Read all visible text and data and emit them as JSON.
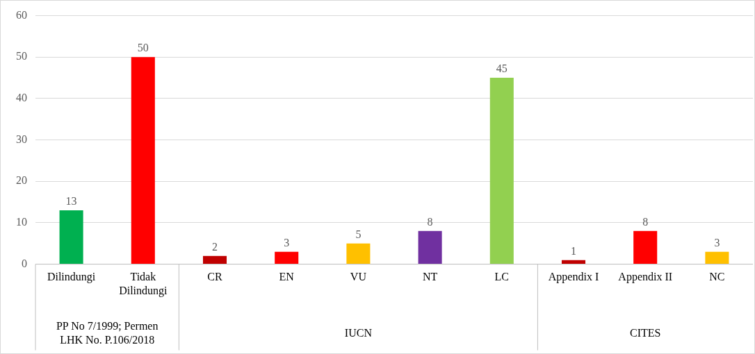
{
  "chart_data": {
    "type": "bar",
    "categories": [
      "Dilindungi",
      "Tidak Dilindungi",
      "CR",
      "EN",
      "VU",
      "NT",
      "LC",
      "Appendix I",
      "Appendix II",
      "NC"
    ],
    "values": [
      13,
      50,
      2,
      3,
      5,
      8,
      45,
      1,
      8,
      3
    ],
    "colors": [
      "#00b050",
      "#ff0000",
      "#c00000",
      "#ff0000",
      "#ffc000",
      "#7030a0",
      "#92d050",
      "#c00000",
      "#ff0000",
      "#ffc000"
    ],
    "ylim": [
      0,
      60
    ],
    "yticks": [
      0,
      10,
      20,
      30,
      40,
      50,
      60
    ],
    "grid": "y",
    "data_labels": true,
    "legend": false,
    "annotations": [
      "PP No 7/1999; Permen LHK No. P.106/2018",
      "IUCN",
      "CITES"
    ]
  }
}
